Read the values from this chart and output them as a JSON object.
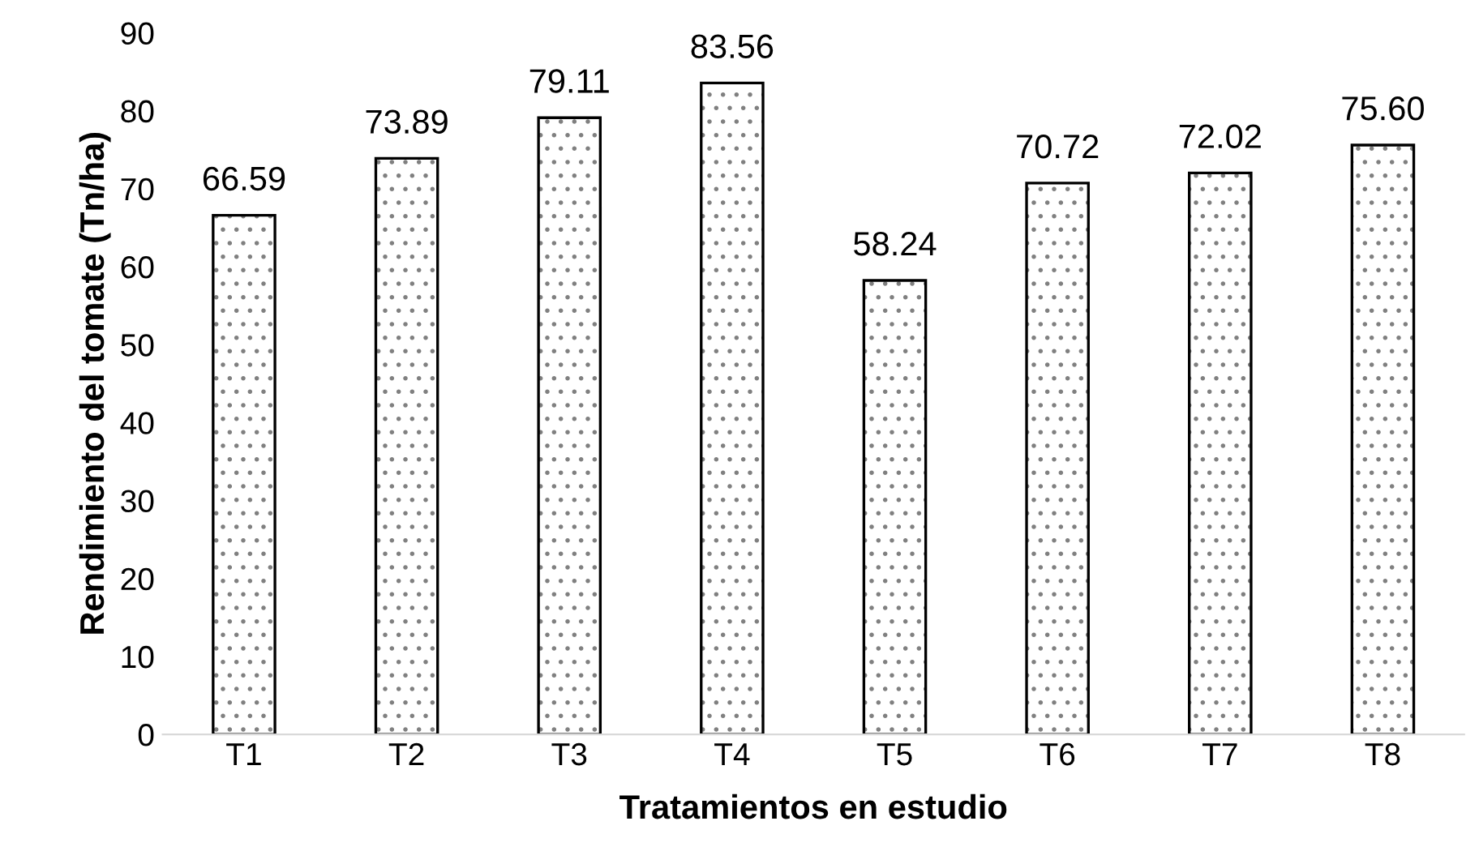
{
  "chart_data": {
    "type": "bar",
    "xlabel": "Tratamientos en estudio",
    "ylabel": "Rendimiento del tomate (Tn/ha)",
    "categories": [
      "T1",
      "T2",
      "T3",
      "T4",
      "T5",
      "T6",
      "T7",
      "T8"
    ],
    "values": [
      66.59,
      73.89,
      79.11,
      83.56,
      58.24,
      70.72,
      72.02,
      75.6
    ],
    "value_labels": [
      "66.59",
      "73.89",
      "79.11",
      "83.56",
      "58.24",
      "70.72",
      "72.02",
      "75.60"
    ],
    "color": "#000000",
    "ylim": [
      0,
      90
    ],
    "yticks": [
      0,
      10,
      20,
      30,
      40,
      50,
      60,
      70,
      80,
      90
    ],
    "grid": false,
    "legend": false
  }
}
